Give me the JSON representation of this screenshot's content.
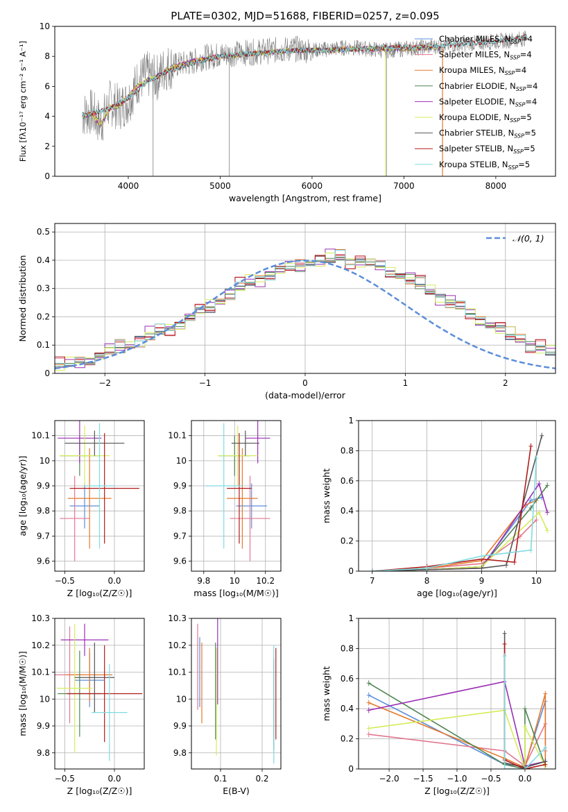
{
  "title": "PLATE=0302, MJD=51688, FIBERID=0257, z=0.095",
  "chart_data": [
    {
      "id": "spectrum",
      "type": "line",
      "xlabel": "wavelength [Angstrom, rest frame]",
      "ylabel": "Flux [fλ10⁻¹⁷ erg cm⁻² s⁻¹ A⁻¹]",
      "xlim": [
        3200,
        8650
      ],
      "ylim": [
        0,
        10
      ],
      "xticks": [
        4000,
        5000,
        6000,
        7000,
        8000
      ],
      "yticks": [
        0,
        2,
        4,
        6,
        8,
        10
      ],
      "grid": false,
      "legend_position": "right",
      "data_series": {
        "name": "",
        "color": "#808080",
        "x": [
          3500,
          3600,
          3700,
          3800,
          3900,
          4000,
          4100,
          4200,
          4300,
          4400,
          4500,
          4600,
          4700,
          4800,
          4900,
          5000,
          5200,
          5400,
          5600,
          5800,
          6000,
          6200,
          6400,
          6600,
          6800,
          7000,
          7200,
          7400,
          7600,
          7800,
          8000,
          8200,
          8300
        ],
        "y": [
          4.1,
          4.3,
          3.5,
          4.9,
          4.6,
          5.0,
          6.3,
          6.8,
          6.5,
          7.2,
          7.4,
          7.5,
          7.6,
          7.9,
          8.0,
          8.1,
          8.2,
          8.3,
          8.4,
          8.5,
          8.4,
          8.5,
          8.6,
          8.5,
          8.4,
          8.5,
          8.6,
          8.7,
          8.8,
          8.9,
          9.0,
          9.1,
          9.2
        ]
      },
      "model_series": [
        {
          "name": "Chabrier MILES, N$_{SSP}$=4",
          "color": "#5b8ddb"
        },
        {
          "name": "Salpeter MILES, N$_{SSP}$=4",
          "color": "#e2778f"
        },
        {
          "name": "Kroupa MILES, N$_{SSP}$=4",
          "color": "#e6782a"
        },
        {
          "name": "Chabrier ELODIE, N$_{SSP}$=4",
          "color": "#4f8452"
        },
        {
          "name": "Salpeter ELODIE, N$_{SSP}$=4",
          "color": "#9a2fb5"
        },
        {
          "name": "Kroupa ELODIE, N$_{SSP}$=5",
          "color": "#d4ec5a"
        },
        {
          "name": "Chabrier STELIB, N$_{SSP}$=5",
          "color": "#555555"
        },
        {
          "name": "Salpeter STELIB, N$_{SSP}$=5",
          "color": "#b01a1a"
        },
        {
          "name": "Kroupa STELIB, N$_{SSP}$=5",
          "color": "#7fdbe0"
        }
      ],
      "model_x": [
        3500,
        3600,
        3700,
        3800,
        3900,
        4000,
        4100,
        4200,
        4300,
        4400,
        4500,
        4600,
        4800,
        5000,
        5200,
        5400,
        5600,
        5800,
        6000,
        6200,
        6400,
        6600,
        6800,
        7000,
        7200,
        7400
      ],
      "model_y": [
        4.0,
        4.2,
        3.4,
        4.6,
        4.7,
        5.3,
        6.0,
        6.4,
        6.6,
        7.0,
        7.3,
        7.5,
        7.8,
        8.0,
        8.1,
        8.2,
        8.3,
        8.4,
        8.4,
        8.4,
        8.5,
        8.5,
        8.5,
        8.5,
        8.6,
        8.6
      ],
      "stelib_x": [
        3500,
        3800,
        4000,
        4200,
        4400,
        4600,
        4800,
        5000,
        5200,
        5400,
        5600,
        5800,
        6000,
        6200,
        6400,
        6600,
        6800,
        7000,
        7200,
        7400,
        7600,
        7800,
        8000,
        8200,
        8350
      ],
      "stelib_y": [
        4.1,
        4.5,
        5.2,
        6.3,
        6.9,
        7.4,
        7.7,
        8.0,
        8.1,
        8.2,
        8.3,
        8.4,
        8.4,
        8.4,
        8.5,
        8.5,
        8.6,
        8.6,
        8.6,
        8.7,
        8.8,
        8.9,
        9.0,
        9.2,
        9.3
      ]
    },
    {
      "id": "residuals",
      "type": "histogram",
      "xlabel": "(data-model)/error",
      "ylabel": "Normed distribution",
      "xlim": [
        -2.5,
        2.5
      ],
      "ylim": [
        0,
        0.53
      ],
      "xticks": [
        -2,
        -1,
        0,
        1,
        2
      ],
      "yticks": [
        0.0,
        0.1,
        0.2,
        0.3,
        0.4,
        0.5
      ],
      "grid": true,
      "legend_position": "top-right",
      "legend": [
        "𝒩(0, 1)"
      ],
      "bin_width": 0.1,
      "bin_start": -2.6,
      "base_values": [
        0.02,
        0.025,
        0.03,
        0.04,
        0.05,
        0.06,
        0.075,
        0.09,
        0.1,
        0.115,
        0.13,
        0.145,
        0.16,
        0.175,
        0.195,
        0.215,
        0.235,
        0.255,
        0.28,
        0.3,
        0.32,
        0.335,
        0.35,
        0.36,
        0.37,
        0.38,
        0.39,
        0.395,
        0.4,
        0.41,
        0.4,
        0.395,
        0.385,
        0.375,
        0.36,
        0.345,
        0.33,
        0.31,
        0.29,
        0.27,
        0.25,
        0.23,
        0.21,
        0.19,
        0.17,
        0.15,
        0.135,
        0.12,
        0.1,
        0.085,
        0.07,
        0.06,
        0.045
      ],
      "normal_curve": {
        "mu": 0,
        "sigma": 1,
        "color": "#5b8ddb"
      }
    },
    {
      "id": "age-vs-Z",
      "type": "errorbar",
      "xlabel": "Z [log₁₀(Z/Z☉)]",
      "ylabel": "age  [log₁₀(age/yr)]",
      "xlim": [
        -0.6,
        0.3
      ],
      "ylim": [
        9.56,
        10.16
      ],
      "xticks": [
        -0.5,
        0.0
      ],
      "xtick_labels": [
        "−0.5",
        "0.0"
      ],
      "yticks": [
        9.6,
        9.7,
        9.8,
        9.9,
        10.0,
        10.1
      ],
      "grid": true,
      "points": [
        {
          "x": -0.3,
          "xerr": 0.15,
          "y": 9.82,
          "yerr": 0.09,
          "color": "#5b8ddb"
        },
        {
          "x": -0.4,
          "xerr": 0.15,
          "y": 9.77,
          "yerr": 0.17,
          "color": "#e2778f"
        },
        {
          "x": -0.25,
          "xerr": 0.22,
          "y": 9.85,
          "yerr": 0.2,
          "color": "#e6782a"
        },
        {
          "x": -0.35,
          "xerr": 0.2,
          "y": 10.02,
          "yerr": 0.08,
          "color": "#4f8452"
        },
        {
          "x": -0.35,
          "xerr": 0.22,
          "y": 10.09,
          "yerr": 0.1,
          "color": "#9a2fb5"
        },
        {
          "x": -0.3,
          "xerr": 0.25,
          "y": 10.02,
          "yerr": 0.12,
          "color": "#d4ec5a"
        },
        {
          "x": -0.2,
          "xerr": 0.3,
          "y": 10.07,
          "yerr": 0.05,
          "color": "#555555"
        },
        {
          "x": -0.1,
          "xerr": 0.35,
          "y": 9.89,
          "yerr": 0.22,
          "color": "#b01a1a"
        },
        {
          "x": -0.15,
          "xerr": 0.15,
          "y": 9.9,
          "yerr": 0.25,
          "color": "#7fdbe0"
        }
      ]
    },
    {
      "id": "age-vs-mass",
      "type": "errorbar",
      "xlabel": "mass [log₁₀(M/M☉)]",
      "ylabel": "",
      "xlim": [
        9.72,
        10.3
      ],
      "ylim": [
        9.56,
        10.16
      ],
      "xticks": [
        9.8,
        10.0,
        10.2
      ],
      "yticks": [
        9.6,
        9.7,
        9.8,
        9.9,
        10.0,
        10.1
      ],
      "grid": true,
      "points": [
        {
          "x": 10.11,
          "xerr": 0.1,
          "y": 9.82,
          "yerr": 0.09,
          "color": "#5b8ddb"
        },
        {
          "x": 10.1,
          "xerr": 0.13,
          "y": 9.77,
          "yerr": 0.17,
          "color": "#e2778f"
        },
        {
          "x": 10.05,
          "xerr": 0.1,
          "y": 9.85,
          "yerr": 0.2,
          "color": "#e6782a"
        },
        {
          "x": 10.0,
          "xerr": 0.1,
          "y": 10.02,
          "yerr": 0.08,
          "color": "#4f8452"
        },
        {
          "x": 10.15,
          "xerr": 0.08,
          "y": 10.09,
          "yerr": 0.1,
          "color": "#9a2fb5"
        },
        {
          "x": 10.02,
          "xerr": 0.13,
          "y": 10.02,
          "yerr": 0.12,
          "color": "#d4ec5a"
        },
        {
          "x": 10.07,
          "xerr": 0.09,
          "y": 10.07,
          "yerr": 0.05,
          "color": "#555555"
        },
        {
          "x": 10.03,
          "xerr": 0.08,
          "y": 9.89,
          "yerr": 0.22,
          "color": "#b01a1a"
        },
        {
          "x": 9.93,
          "xerr": 0.12,
          "y": 9.9,
          "yerr": 0.25,
          "color": "#7fdbe0"
        }
      ]
    },
    {
      "id": "massweight-vs-age",
      "type": "line",
      "xlabel": "age  [log₁₀(age/yr)]",
      "ylabel": "mass weight",
      "xlim": [
        6.75,
        10.35
      ],
      "ylim": [
        0,
        1.0
      ],
      "xticks": [
        7,
        8,
        9,
        10
      ],
      "yticks": [
        0.0,
        0.2,
        0.4,
        0.6,
        0.8,
        1.0
      ],
      "grid": true,
      "series": [
        {
          "color": "#5b8ddb",
          "x": [
            7.0,
            8.0,
            9.0,
            9.9,
            10.1
          ],
          "y": [
            0.0,
            0.01,
            0.03,
            0.47,
            0.49
          ]
        },
        {
          "color": "#e2778f",
          "x": [
            7.0,
            8.0,
            9.0,
            9.7,
            10.0
          ],
          "y": [
            0.0,
            0.02,
            0.05,
            0.23,
            0.34
          ]
        },
        {
          "color": "#e6782a",
          "x": [
            7.0,
            8.0,
            9.0,
            9.8,
            10.0
          ],
          "y": [
            0.0,
            0.02,
            0.07,
            0.44,
            0.47
          ]
        },
        {
          "color": "#4f8452",
          "x": [
            7.0,
            8.0,
            9.0,
            9.9,
            10.2
          ],
          "y": [
            0.0,
            0.01,
            0.03,
            0.42,
            0.57
          ]
        },
        {
          "color": "#9a2fb5",
          "x": [
            7.0,
            8.0,
            9.0,
            10.05,
            10.2
          ],
          "y": [
            0.0,
            0.01,
            0.02,
            0.58,
            0.39
          ]
        },
        {
          "color": "#d4ec5a",
          "x": [
            7.0,
            8.0,
            9.0,
            10.05,
            10.2
          ],
          "y": [
            0.0,
            0.01,
            0.03,
            0.39,
            0.27
          ]
        },
        {
          "color": "#555555",
          "x": [
            7.0,
            8.0,
            9.0,
            9.45,
            10.1
          ],
          "y": [
            0.0,
            0.01,
            0.02,
            0.04,
            0.9
          ]
        },
        {
          "color": "#b01a1a",
          "x": [
            7.0,
            8.0,
            9.0,
            9.6,
            9.9
          ],
          "y": [
            0.0,
            0.03,
            0.08,
            0.06,
            0.83
          ]
        },
        {
          "color": "#7fdbe0",
          "x": [
            7.0,
            8.0,
            9.0,
            9.9,
            10.0
          ],
          "y": [
            0.0,
            0.02,
            0.1,
            0.14,
            0.75
          ]
        }
      ]
    },
    {
      "id": "mass-vs-Z",
      "type": "errorbar",
      "xlabel": "Z [log₁₀(Z/Z☉)]",
      "ylabel": "mass [log₁₀(M/M☉)]",
      "xlim": [
        -0.6,
        0.3
      ],
      "ylim": [
        9.74,
        10.3
      ],
      "xticks": [
        -0.5,
        0.0
      ],
      "xtick_labels": [
        "−0.5",
        "0.0"
      ],
      "yticks": [
        9.8,
        9.9,
        10.0,
        10.1,
        10.2,
        10.3
      ],
      "grid": true,
      "points": [
        {
          "x": -0.25,
          "xerr": 0.15,
          "y": 10.07,
          "yerr": 0.1,
          "color": "#5b8ddb"
        },
        {
          "x": -0.45,
          "xerr": 0.15,
          "y": 10.09,
          "yerr": 0.18,
          "color": "#e2778f"
        },
        {
          "x": -0.25,
          "xerr": 0.23,
          "y": 10.09,
          "yerr": 0.1,
          "color": "#e6782a"
        },
        {
          "x": -0.35,
          "xerr": 0.22,
          "y": 10.02,
          "yerr": 0.16,
          "color": "#4f8452"
        },
        {
          "x": -0.3,
          "xerr": 0.24,
          "y": 10.22,
          "yerr": 0.06,
          "color": "#9a2fb5"
        },
        {
          "x": -0.4,
          "xerr": 0.18,
          "y": 10.04,
          "yerr": 0.24,
          "color": "#d4ec5a"
        },
        {
          "x": -0.2,
          "xerr": 0.2,
          "y": 10.08,
          "yerr": 0.13,
          "color": "#555555"
        },
        {
          "x": -0.1,
          "xerr": 0.38,
          "y": 10.02,
          "yerr": 0.18,
          "color": "#b01a1a"
        },
        {
          "x": -0.05,
          "xerr": 0.18,
          "y": 9.95,
          "yerr": 0.18,
          "color": "#7fdbe0"
        }
      ]
    },
    {
      "id": "mass-vs-ebv",
      "type": "errorbar",
      "xlabel": "E(B-V)",
      "ylabel": "",
      "xlim": [
        0.03,
        0.245
      ],
      "ylim": [
        9.74,
        10.3
      ],
      "xticks": [
        0.1,
        0.2
      ],
      "yticks": [
        9.8,
        9.9,
        10.0,
        10.1,
        10.2,
        10.3
      ],
      "grid": true,
      "points": [
        {
          "x": 0.05,
          "y": 10.1,
          "yerr": 0.13,
          "color": "#5b8ddb"
        },
        {
          "x": 0.045,
          "y": 10.12,
          "yerr": 0.16,
          "color": "#e2778f"
        },
        {
          "x": 0.055,
          "y": 10.06,
          "yerr": 0.15,
          "color": "#e6782a"
        },
        {
          "x": 0.088,
          "y": 10.03,
          "yerr": 0.18,
          "color": "#4f8452"
        },
        {
          "x": 0.093,
          "y": 10.15,
          "yerr": 0.17,
          "color": "#9a2fb5"
        },
        {
          "x": 0.09,
          "y": 9.99,
          "yerr": 0.2,
          "color": "#d4ec5a"
        },
        {
          "x": 0.228,
          "y": 9.98,
          "yerr": 0.17,
          "color": "#555555"
        },
        {
          "x": 0.233,
          "y": 10.02,
          "yerr": 0.17,
          "color": "#b01a1a"
        },
        {
          "x": 0.228,
          "y": 9.98,
          "yerr": 0.22,
          "color": "#7fdbe0"
        }
      ]
    },
    {
      "id": "massweight-vs-Z",
      "type": "line",
      "xlabel": "Z [log₁₀(Z/Z☉)]",
      "ylabel": "mass weight",
      "xlim": [
        -2.45,
        0.45
      ],
      "ylim": [
        0,
        1.0
      ],
      "xticks": [
        -2.0,
        -1.5,
        -1.0,
        -0.5,
        0.0
      ],
      "xtick_labels": [
        "−2.0",
        "−1.5",
        "−1.0",
        "−0.5",
        "0.0"
      ],
      "yticks": [
        0.0,
        0.2,
        0.4,
        0.6,
        0.8,
        1.0
      ],
      "grid": true,
      "series": [
        {
          "color": "#5b8ddb",
          "x": [
            -2.3,
            -0.3,
            0.0,
            0.3,
            0.3
          ],
          "y": [
            0.49,
            0.03,
            0.02,
            0.45,
            0.05
          ]
        },
        {
          "color": "#e2778f",
          "x": [
            -2.3,
            -0.3,
            0.0,
            0.3,
            0.3
          ],
          "y": [
            0.23,
            0.12,
            0.02,
            0.3,
            0.12
          ]
        },
        {
          "color": "#e6782a",
          "x": [
            -2.3,
            -0.3,
            0.0,
            0.3,
            0.3
          ],
          "y": [
            0.44,
            0.07,
            0.01,
            0.5,
            0.03
          ]
        },
        {
          "color": "#4f8452",
          "x": [
            -2.3,
            -0.3,
            0.0,
            0.0,
            0.3
          ],
          "y": [
            0.57,
            0.03,
            0.0,
            0.4,
            0.02
          ]
        },
        {
          "color": "#9a2fb5",
          "x": [
            -2.3,
            -0.3,
            0.0,
            0.3
          ],
          "y": [
            0.39,
            0.58,
            0.02,
            0.05
          ]
        },
        {
          "color": "#d4ec5a",
          "x": [
            -2.3,
            -0.3,
            0.0,
            0.0,
            0.3
          ],
          "y": [
            0.27,
            0.39,
            0.0,
            0.28,
            0.02
          ]
        },
        {
          "color": "#555555",
          "x": [
            -0.3,
            -0.3,
            0.0,
            0.3
          ],
          "y": [
            0.9,
            0.04,
            0.01,
            0.05
          ]
        },
        {
          "color": "#b01a1a",
          "x": [
            -0.3,
            -0.3,
            0.0,
            0.3
          ],
          "y": [
            0.83,
            0.06,
            0.0,
            0.03
          ]
        },
        {
          "color": "#7fdbe0",
          "x": [
            -0.3,
            -0.3,
            0.0,
            0.3
          ],
          "y": [
            0.75,
            0.0,
            0.0,
            0.14
          ]
        }
      ]
    }
  ]
}
